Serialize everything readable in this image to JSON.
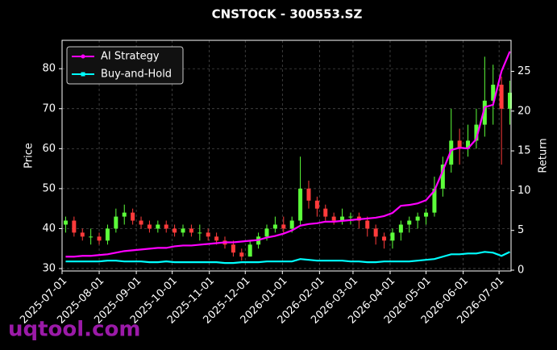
{
  "chart_data": {
    "type": "candlestick",
    "title": "CNSTOCK - 300553.SZ",
    "ylabel": "Price",
    "y2label": "Return",
    "watermark": "uqtool.com",
    "legend": "upper left",
    "grid": true,
    "up_color": "#5cff3a",
    "down_color": "#ff3b3b",
    "xlim": [
      "2025-07-01",
      "2026-07-11"
    ],
    "xticks": [
      "2025-07-01",
      "2025-08-01",
      "2025-09-01",
      "2025-10-01",
      "2025-11-01",
      "2025-12-01",
      "2026-01-01",
      "2026-02-01",
      "2026-03-01",
      "2026-04-01",
      "2026-05-01",
      "2026-06-01",
      "2026-07-01"
    ],
    "ylim": [
      29.4,
      87.1
    ],
    "yticks": [
      30,
      40,
      50,
      60,
      70,
      80
    ],
    "y2lim": [
      -0.1,
      28.9
    ],
    "y2ticks": [
      0,
      5,
      10,
      15,
      20,
      25
    ],
    "x": [
      "2025-07-04",
      "2025-07-11",
      "2025-07-18",
      "2025-07-25",
      "2025-08-01",
      "2025-08-08",
      "2025-08-15",
      "2025-08-22",
      "2025-08-29",
      "2025-09-05",
      "2025-09-12",
      "2025-09-19",
      "2025-09-26",
      "2025-10-03",
      "2025-10-10",
      "2025-10-17",
      "2025-10-24",
      "2025-10-31",
      "2025-11-07",
      "2025-11-14",
      "2025-11-21",
      "2025-11-28",
      "2025-12-05",
      "2025-12-12",
      "2025-12-19",
      "2025-12-26",
      "2026-01-02",
      "2026-01-09",
      "2026-01-16",
      "2026-01-23",
      "2026-01-30",
      "2026-02-06",
      "2026-02-13",
      "2026-02-20",
      "2026-02-27",
      "2026-03-06",
      "2026-03-13",
      "2026-03-20",
      "2026-03-27",
      "2026-04-03",
      "2026-04-10",
      "2026-04-17",
      "2026-04-24",
      "2026-05-01",
      "2026-05-08",
      "2026-05-15",
      "2026-05-22",
      "2026-05-29",
      "2026-06-05",
      "2026-06-12",
      "2026-06-19",
      "2026-06-26",
      "2026-07-03",
      "2026-07-10"
    ],
    "open": [
      41,
      42,
      39,
      38,
      38,
      37,
      40,
      43,
      44,
      42,
      41,
      40,
      41,
      40,
      39,
      40,
      39,
      39,
      38,
      37,
      36,
      34,
      33,
      36,
      38,
      40,
      41,
      40,
      42,
      50,
      47,
      45,
      43,
      42,
      43,
      43,
      42,
      40,
      38,
      37,
      39,
      41,
      42,
      43,
      44,
      50,
      56,
      62,
      60,
      62,
      66,
      72,
      76,
      70
    ],
    "high": [
      43,
      43,
      40,
      40,
      39,
      41,
      45,
      46,
      45,
      43,
      42,
      42,
      42,
      41,
      41,
      41,
      41,
      40,
      39,
      38,
      37,
      35,
      37,
      39,
      41,
      43,
      43,
      43,
      58,
      52,
      48,
      46,
      44,
      45,
      44,
      44,
      43,
      41,
      39,
      40,
      42,
      43,
      44,
      45,
      53,
      58,
      70,
      65,
      66,
      70,
      83,
      81,
      78,
      77
    ],
    "low": [
      39,
      38,
      37,
      36,
      36,
      36,
      39,
      41,
      41,
      40,
      39,
      39,
      39,
      38,
      38,
      38,
      37,
      37,
      36,
      35,
      33,
      32,
      33,
      35,
      37,
      39,
      39,
      39,
      41,
      45,
      43,
      42,
      41,
      41,
      41,
      40,
      38,
      36,
      35,
      35,
      37,
      39,
      40,
      41,
      43,
      48,
      54,
      56,
      58,
      60,
      63,
      66,
      56,
      66
    ],
    "close": [
      42,
      39,
      38,
      38,
      37,
      40,
      43,
      44,
      42,
      41,
      40,
      41,
      40,
      39,
      40,
      39,
      39,
      38,
      37,
      36,
      34,
      33,
      36,
      38,
      40,
      41,
      40,
      42,
      50,
      47,
      45,
      43,
      42,
      43,
      43,
      42,
      40,
      38,
      37,
      39,
      41,
      42,
      43,
      44,
      50,
      56,
      62,
      60,
      62,
      66,
      72,
      76,
      70,
      74
    ],
    "series": [
      {
        "name": "AI Strategy",
        "color": "#ff00ff",
        "axis": "y2",
        "values": [
          1.7,
          1.7,
          1.8,
          1.8,
          1.9,
          2.0,
          2.2,
          2.4,
          2.5,
          2.6,
          2.7,
          2.8,
          2.8,
          3.0,
          3.1,
          3.1,
          3.2,
          3.3,
          3.4,
          3.5,
          3.5,
          3.6,
          3.7,
          3.8,
          4.1,
          4.3,
          4.6,
          5.0,
          5.6,
          5.8,
          5.9,
          6.1,
          6.1,
          6.2,
          6.3,
          6.4,
          6.5,
          6.6,
          6.8,
          7.2,
          8.1,
          8.2,
          8.4,
          8.8,
          10.0,
          12.5,
          15.1,
          15.4,
          15.3,
          16.5,
          20.5,
          20.8,
          25.0,
          27.5
        ]
      },
      {
        "name": "Buy-and-Hold",
        "color": "#00ffff",
        "axis": "y2",
        "values": [
          1.1,
          1.1,
          1.1,
          1.1,
          1.1,
          1.2,
          1.2,
          1.1,
          1.1,
          1.1,
          1.0,
          1.0,
          1.1,
          1.0,
          1.0,
          1.0,
          1.0,
          1.0,
          1.0,
          0.9,
          0.9,
          1.0,
          1.0,
          1.0,
          1.1,
          1.1,
          1.1,
          1.1,
          1.4,
          1.3,
          1.2,
          1.2,
          1.2,
          1.2,
          1.1,
          1.1,
          1.0,
          1.0,
          1.1,
          1.1,
          1.1,
          1.1,
          1.2,
          1.3,
          1.4,
          1.7,
          2.0,
          2.0,
          2.1,
          2.1,
          2.3,
          2.2,
          1.8,
          2.3
        ]
      }
    ]
  }
}
